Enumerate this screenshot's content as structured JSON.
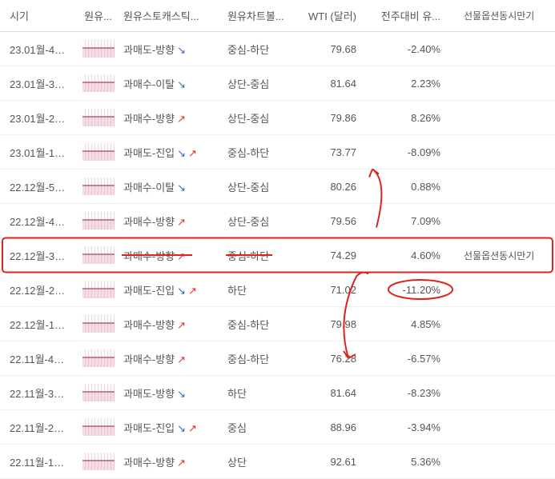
{
  "headers": {
    "time": "시기",
    "chart": "원유...",
    "stoch": "원유스토캐스틱...",
    "boll": "원유차트볼...",
    "wti": "WTI (달러)",
    "change": "전주대비 유...",
    "expiry": "선물옵션동시만기"
  },
  "rows": [
    {
      "time": "23.01월-4주 ...",
      "stoch": "과매도-방향",
      "s_arrow": "↘",
      "boll": "중심-하단",
      "wti": "79.68",
      "change": "-2.40%",
      "expiry": ""
    },
    {
      "time": "23.01월-3주 ...",
      "stoch": "과매수-이탈",
      "s_arrow": "↘",
      "boll": "상단-중심",
      "wti": "81.64",
      "change": "2.23%",
      "expiry": ""
    },
    {
      "time": "23.01월-2주 ...",
      "stoch": "과매수-방향",
      "s_arrow": "↗",
      "boll": "상단-중심",
      "wti": "79.86",
      "change": "8.26%",
      "expiry": ""
    },
    {
      "time": "23.01월-1주 ...",
      "stoch": "과매도-진입",
      "s_arrow": "↘ ↗",
      "boll": "중심-하단",
      "wti": "73.77",
      "change": "-8.09%",
      "expiry": ""
    },
    {
      "time": "22.12월-5주 ...",
      "stoch": "과매수-이탈",
      "s_arrow": "↘",
      "boll": "상단-중심",
      "wti": "80.26",
      "change": "0.88%",
      "expiry": ""
    },
    {
      "time": "22.12월-4주 ...",
      "stoch": "과매수-방향",
      "s_arrow": "↗",
      "boll": "상단-중심",
      "wti": "79.56",
      "change": "7.09%",
      "expiry": ""
    },
    {
      "time": "22.12월-3주 ...",
      "stoch": "과매수-방향",
      "s_arrow": "↗",
      "boll": "중심-하단",
      "wti": "74.29",
      "change": "4.60%",
      "expiry": "선물옵션동시만기"
    },
    {
      "time": "22.12월-2주 ...",
      "stoch": "과매도-진입",
      "s_arrow": "↘ ↗",
      "boll": "하단",
      "wti": "71.02",
      "change": "-11.20%",
      "expiry": ""
    },
    {
      "time": "22.12월-1주 ...",
      "stoch": "과매수-방향",
      "s_arrow": "↗",
      "boll": "중심-하단",
      "wti": "79.98",
      "change": "4.85%",
      "expiry": ""
    },
    {
      "time": "22.11월-4주 ...",
      "stoch": "과매수-방향",
      "s_arrow": "↗",
      "boll": "중심-하단",
      "wti": "76.28",
      "change": "-6.57%",
      "expiry": ""
    },
    {
      "time": "22.11월-3주 ...",
      "stoch": "과매도-방향",
      "s_arrow": "↘",
      "boll": "하단",
      "wti": "81.64",
      "change": "-8.23%",
      "expiry": ""
    },
    {
      "time": "22.11월-2주 ...",
      "stoch": "과매도-진입",
      "s_arrow": "↘ ↗",
      "boll": "중심",
      "wti": "88.96",
      "change": "-3.94%",
      "expiry": ""
    },
    {
      "time": "22.11월-1주 ...",
      "stoch": "과매수-방향",
      "s_arrow": "↗",
      "boll": "상단",
      "wti": "92.61",
      "change": "5.36%",
      "expiry": ""
    }
  ],
  "annotation": {
    "highlight_row": 6,
    "circle_change_row": 7,
    "color": "#d22"
  }
}
